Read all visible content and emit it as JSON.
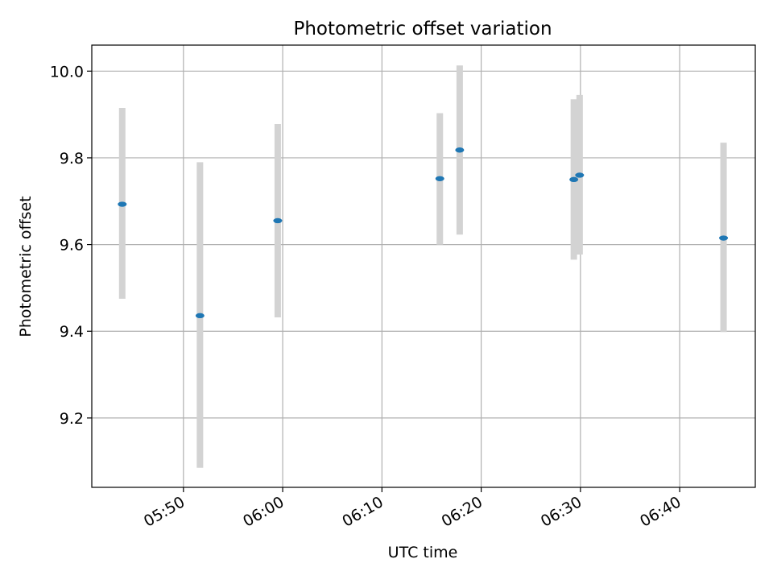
{
  "chart_data": {
    "type": "scatter",
    "title": "Photometric offset variation",
    "xlabel": "UTC time",
    "ylabel": "Photometric offset",
    "x_axis": {
      "kind": "time",
      "range": [
        "05:40:46",
        "06:47:37"
      ],
      "tick_values": [
        "05:50",
        "06:00",
        "06:10",
        "06:20",
        "06:30",
        "06:40"
      ],
      "tick_labels": [
        "05:50",
        "06:00",
        "06:10",
        "06:20",
        "06:30",
        "06:40"
      ],
      "tick_label_rotation_deg": 30
    },
    "y_axis": {
      "range": [
        9.04,
        10.06
      ],
      "ticks": [
        9.2,
        9.4,
        9.6,
        9.8,
        10.0
      ],
      "tick_labels": [
        "9.2",
        "9.4",
        "9.6",
        "9.8",
        "10.0"
      ]
    },
    "grid": true,
    "legend": "none",
    "colors": {
      "point": "#1f77b4",
      "errorbar": "#d3d3d3",
      "grid": "#b0b0b0"
    },
    "points": [
      {
        "time": "05:43:50",
        "y": 9.693,
        "err_low": 9.475,
        "err_high": 9.915
      },
      {
        "time": "05:51:40",
        "y": 9.436,
        "err_low": 9.085,
        "err_high": 9.79
      },
      {
        "time": "05:59:30",
        "y": 9.655,
        "err_low": 9.432,
        "err_high": 9.878
      },
      {
        "time": "06:15:50",
        "y": 9.752,
        "err_low": 9.6,
        "err_high": 9.903
      },
      {
        "time": "06:17:50",
        "y": 9.818,
        "err_low": 9.623,
        "err_high": 10.013
      },
      {
        "time": "06:29:20",
        "y": 9.75,
        "err_low": 9.565,
        "err_high": 9.935
      },
      {
        "time": "06:29:55",
        "y": 9.76,
        "err_low": 9.577,
        "err_high": 9.945
      },
      {
        "time": "06:44:25",
        "y": 9.615,
        "err_low": 9.398,
        "err_high": 9.835
      }
    ]
  }
}
